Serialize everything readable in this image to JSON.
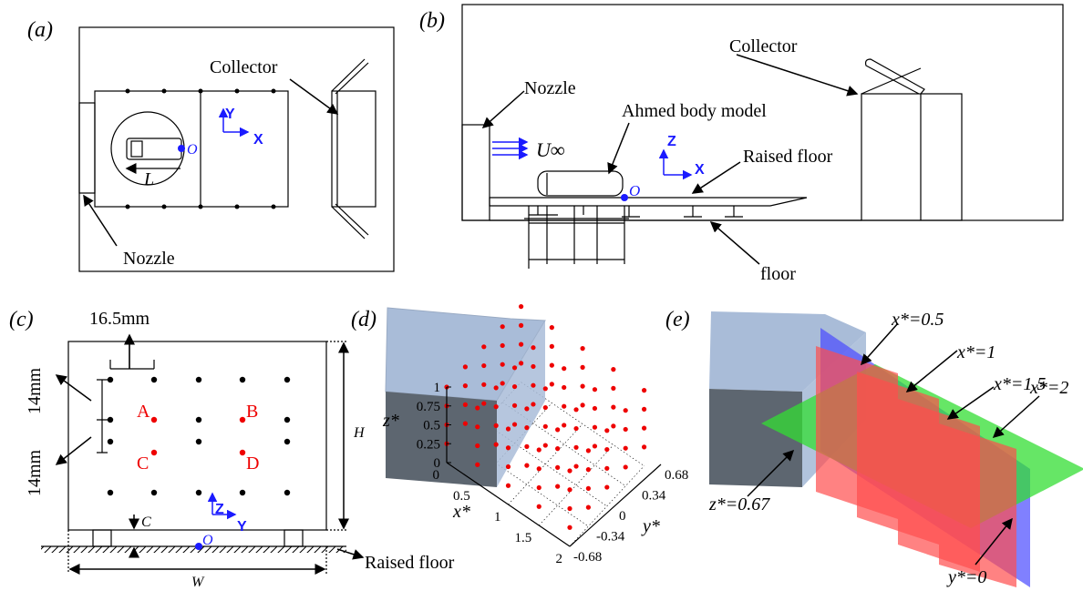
{
  "panel_a": {
    "label": "(a)",
    "collector": "Collector",
    "nozzle": "Nozzle",
    "axis_y": "Y",
    "axis_x": "X",
    "origin": "O",
    "length": "L"
  },
  "panel_b": {
    "label": "(b)",
    "nozzle": "Nozzle",
    "collector": "Collector",
    "model": "Ahmed body model",
    "velocity": "U∞",
    "axis_z": "Z",
    "axis_x": "X",
    "raised_floor": "Raised floor",
    "origin": "O",
    "floor": "floor"
  },
  "panel_c": {
    "label": "(c)",
    "spacing_y": "16.5mm",
    "spacing_z1": "14mm",
    "spacing_z2": "14mm",
    "points": [
      "A",
      "B",
      "C",
      "D"
    ],
    "axis_z": "Z",
    "axis_y": "Y",
    "clearance": "C",
    "origin": "O",
    "height": "H",
    "width": "W",
    "raised_floor": "Raised floor"
  },
  "panel_d": {
    "label": "(d)",
    "z_label": "z*",
    "x_label": "x*",
    "y_label": "y*",
    "z_ticks": [
      "0",
      "0.25",
      "0.5",
      "0.75",
      "1"
    ],
    "x_ticks": [
      "0",
      "0.5",
      "1",
      "1.5",
      "2"
    ],
    "y_ticks": [
      "0.68",
      "0.34",
      "0",
      "-0.34",
      "-0.68"
    ]
  },
  "panel_e": {
    "label": "(e)",
    "planes": [
      "x*=0.5",
      "x*=1",
      "x*=1.5",
      "x*=2"
    ],
    "z_plane": "z*=0.67",
    "y_plane": "y*=0"
  }
}
